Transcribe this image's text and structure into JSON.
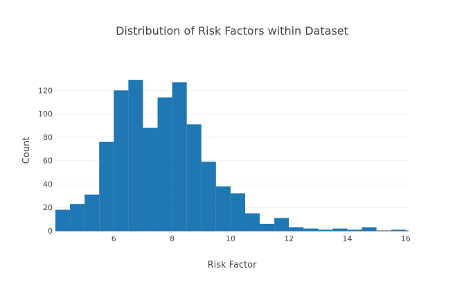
{
  "chart_data": {
    "type": "bar",
    "subtype": "histogram",
    "title": "Distribution of Risk Factors within Dataset",
    "xlabel": "Risk Factor",
    "ylabel": "Count",
    "bin_start": 4.0,
    "bin_width": 0.5,
    "values": [
      18,
      23,
      31,
      76,
      120,
      129,
      88,
      114,
      127,
      91,
      59,
      38,
      32,
      15,
      6,
      11,
      3,
      2,
      1,
      2,
      1,
      3,
      0,
      1
    ],
    "xlim": [
      4.0,
      16.1
    ],
    "ylim": [
      0,
      138
    ],
    "xticks": [
      6,
      8,
      10,
      12,
      14,
      16
    ],
    "yticks": [
      0,
      20,
      40,
      60,
      80,
      100,
      120
    ],
    "bar_color": "#1f77b4",
    "grid": true
  }
}
